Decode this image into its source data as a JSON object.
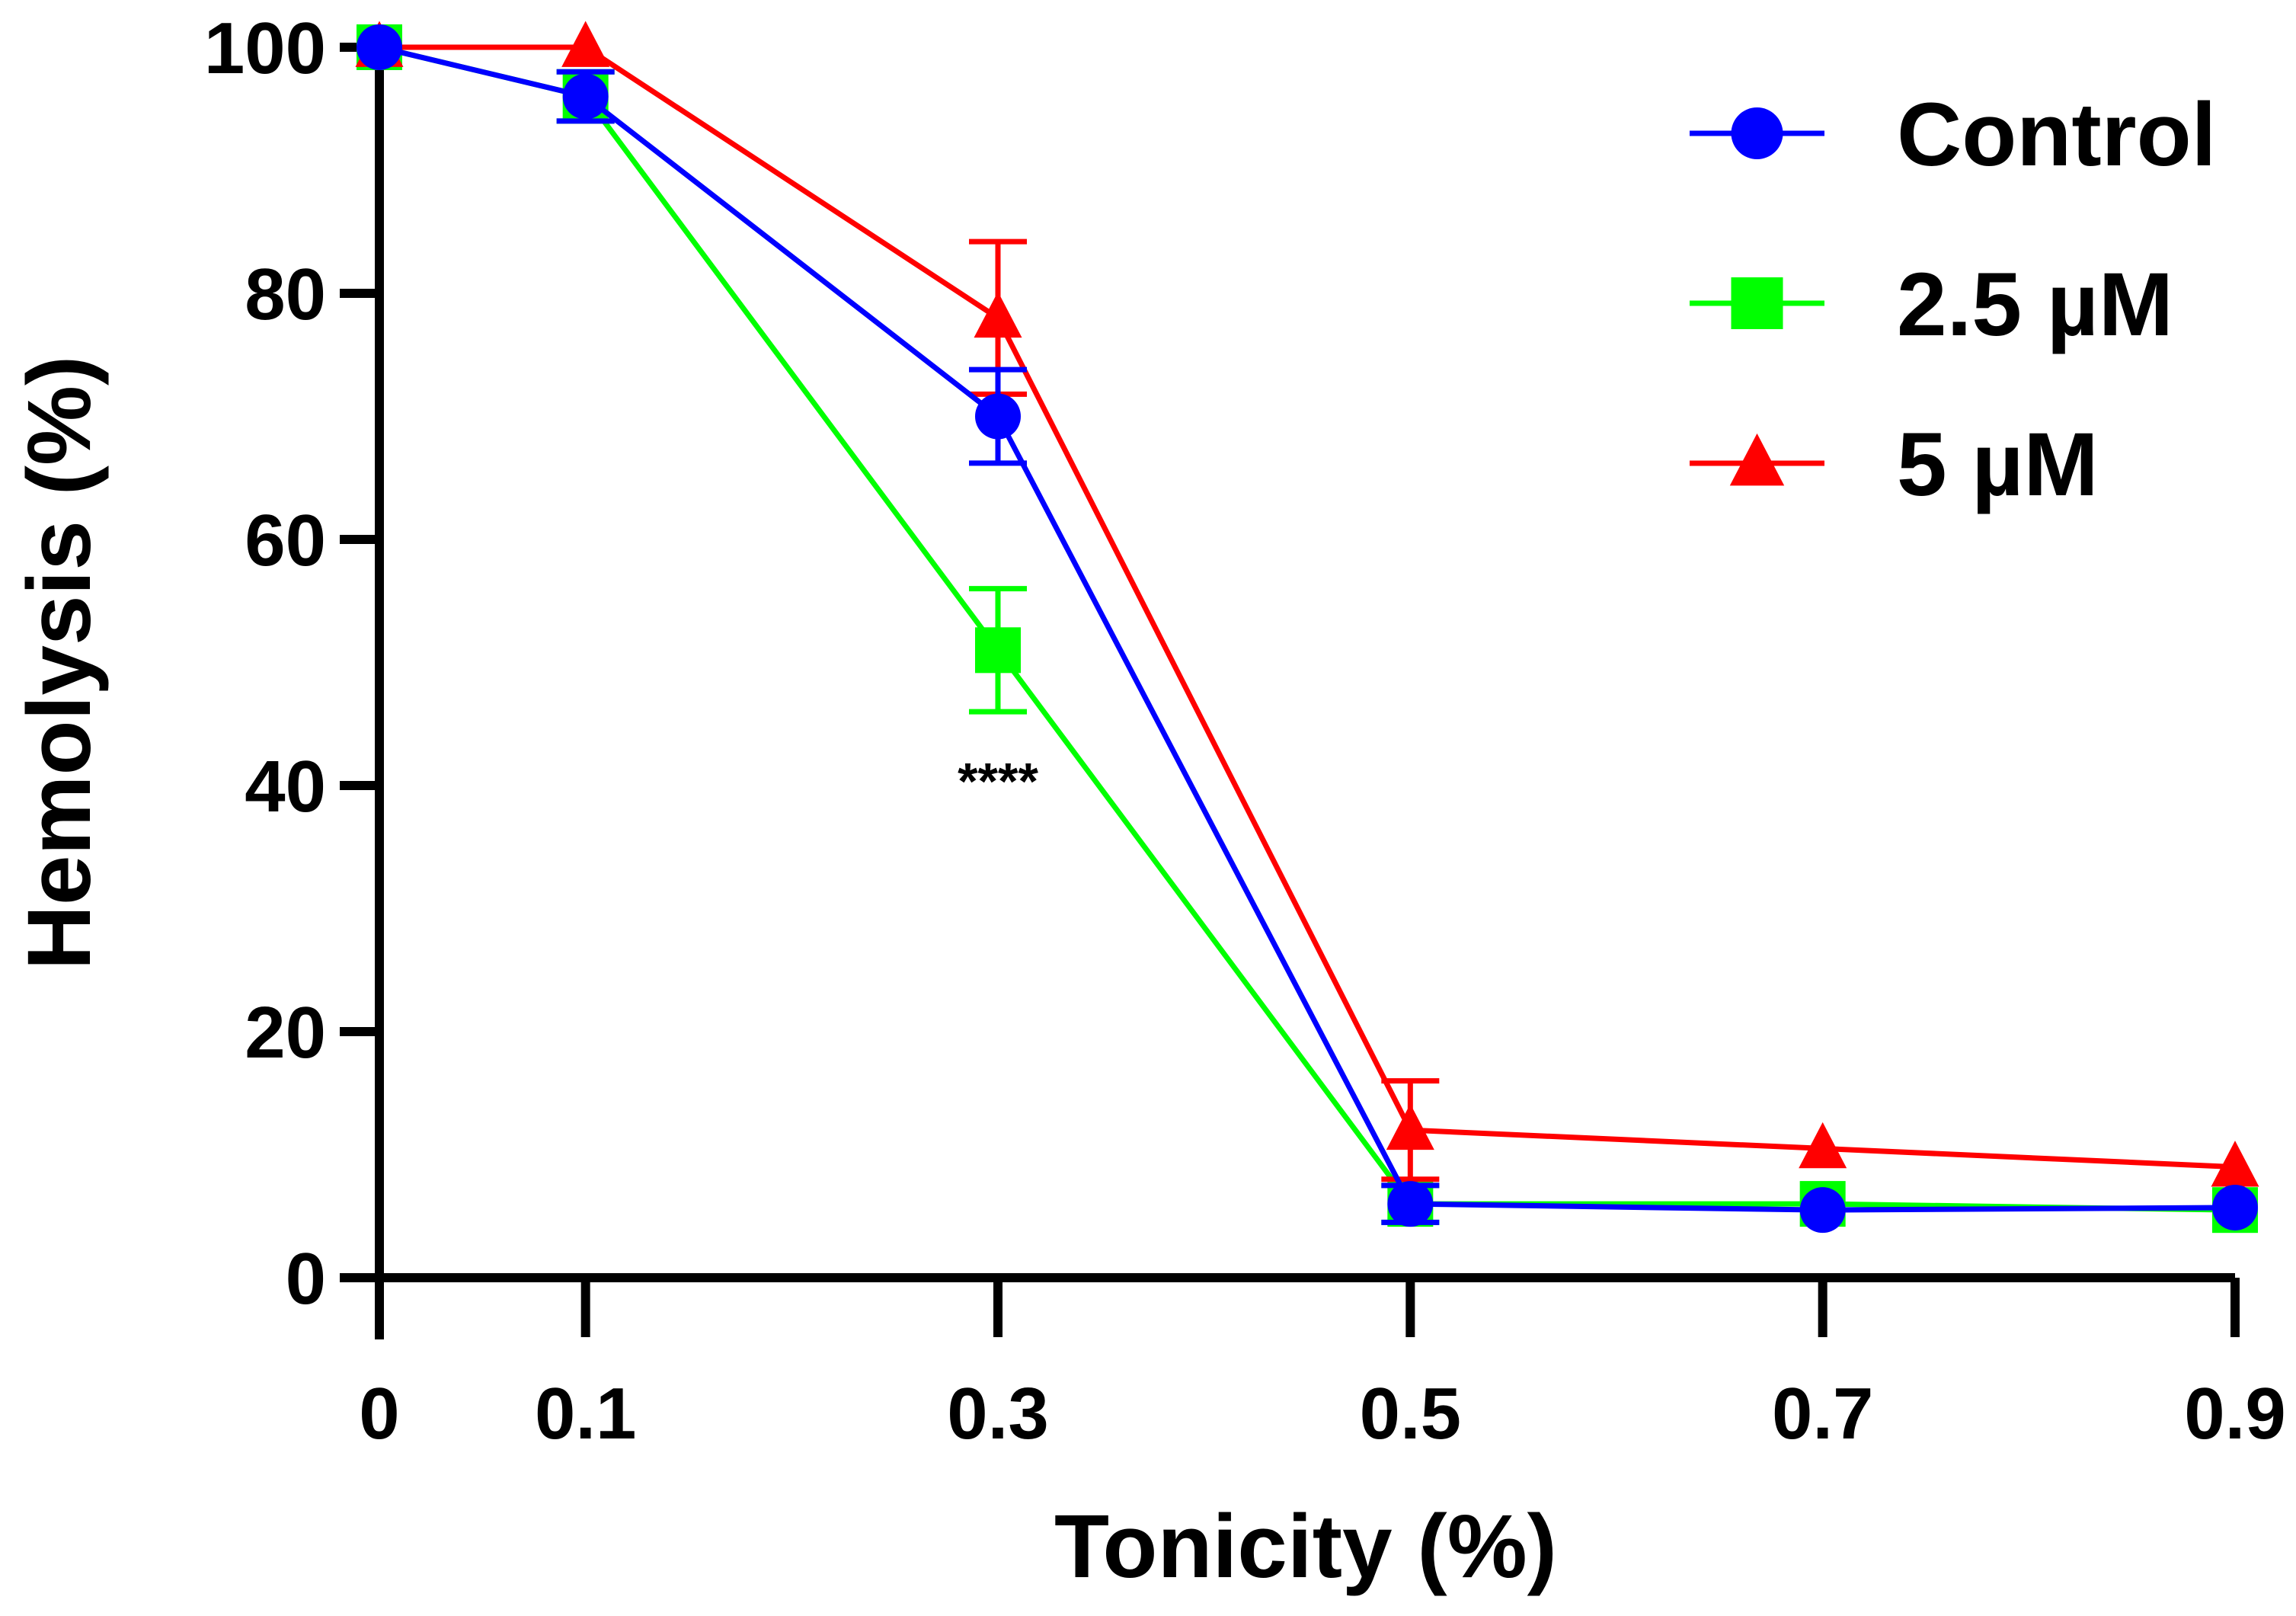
{
  "chart_data": {
    "type": "line",
    "title": "",
    "xlabel": "Tonicity (%)",
    "ylabel": "Hemolysis (%)",
    "x": [
      0,
      0.1,
      0.3,
      0.5,
      0.7,
      0.9
    ],
    "x_tick_labels": [
      "0",
      "0.1",
      "0.3",
      "0.5",
      "0.7",
      "0.9"
    ],
    "y_ticks": [
      0,
      20,
      40,
      60,
      80,
      100
    ],
    "y_tick_labels": [
      "0",
      "20",
      "40",
      "60",
      "80",
      "100"
    ],
    "xlim": [
      0,
      0.9
    ],
    "ylim": [
      0,
      100
    ],
    "grid": false,
    "legend_position": "top-right",
    "series": [
      {
        "name": "Control",
        "color": "#0000ff",
        "marker": "circle",
        "values": [
          100,
          96,
          70,
          6,
          5.5,
          5.7
        ],
        "errors": [
          0,
          2,
          3.8,
          1.5,
          0,
          0
        ]
      },
      {
        "name": "2.5 µM",
        "color": "#00ff00",
        "marker": "square",
        "values": [
          100,
          96,
          51,
          6,
          6,
          5.5
        ],
        "errors": [
          0,
          2,
          5,
          1.5,
          0,
          0
        ]
      },
      {
        "name": "5 µM",
        "color": "#ff0000",
        "marker": "triangle",
        "values": [
          100,
          100,
          78,
          12,
          10.5,
          9
        ],
        "errors": [
          0,
          0,
          6.2,
          4,
          0,
          0
        ]
      }
    ],
    "annotations": [
      {
        "text": "****",
        "x": 0.3,
        "y": 42
      }
    ]
  }
}
